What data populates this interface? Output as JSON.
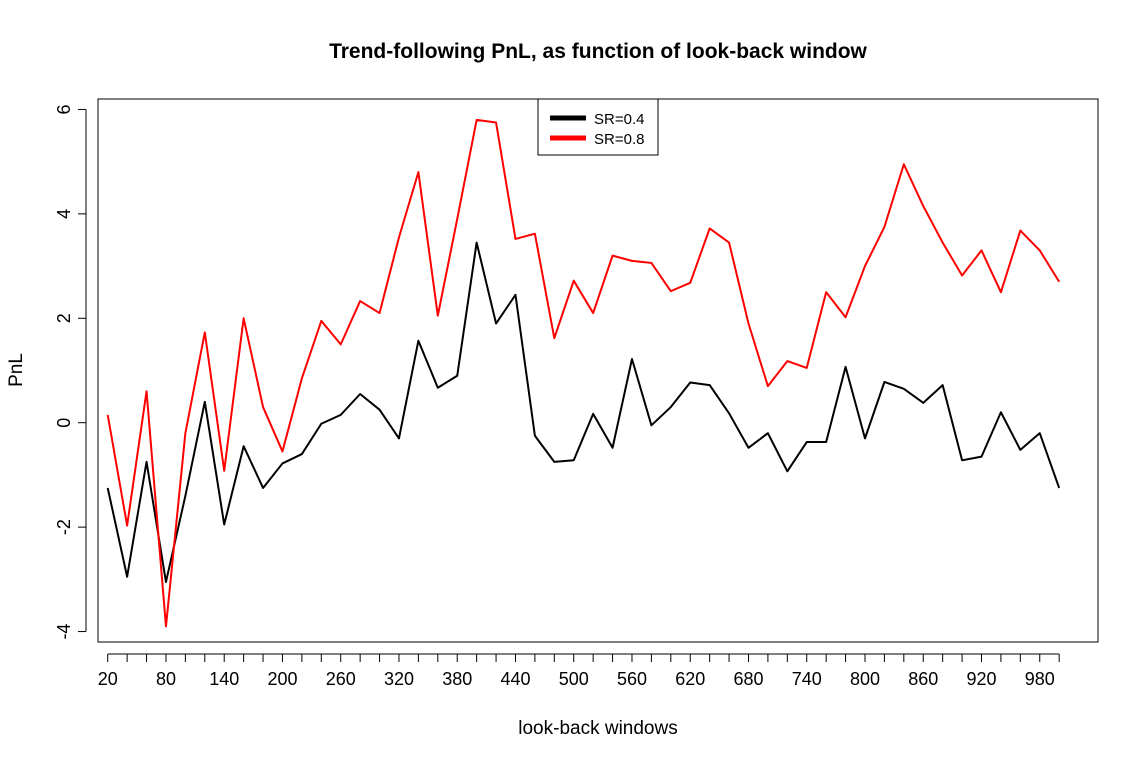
{
  "chart_data": {
    "type": "line",
    "title": "Trend-following PnL, as function of look-back window",
    "xlabel": "look-back windows",
    "ylabel": "PnL",
    "x": [
      20,
      40,
      60,
      80,
      100,
      120,
      140,
      160,
      180,
      200,
      220,
      240,
      260,
      280,
      300,
      320,
      340,
      360,
      380,
      400,
      420,
      440,
      460,
      480,
      500,
      520,
      540,
      560,
      580,
      600,
      620,
      640,
      660,
      680,
      700,
      720,
      740,
      760,
      780,
      800,
      820,
      840,
      860,
      880,
      900,
      920,
      940,
      960,
      980,
      1000
    ],
    "x_tick_labels": [
      "20",
      "80",
      "140",
      "200",
      "260",
      "320",
      "380",
      "440",
      "500",
      "560",
      "620",
      "680",
      "740",
      "800",
      "860",
      "920",
      "980"
    ],
    "y_ticks": [
      -4,
      -2,
      0,
      2,
      4,
      6
    ],
    "y_tick_labels": [
      "-4",
      "-2",
      "0",
      "2",
      "4",
      "6"
    ],
    "xlim": [
      10,
      1040
    ],
    "ylim": [
      -4.2,
      6.2
    ],
    "grid": false,
    "legend_position": "top-center",
    "series": [
      {
        "name": "SR=0.4",
        "color": "#000000",
        "values": [
          -1.25,
          -2.95,
          -0.75,
          -3.05,
          -1.4,
          0.4,
          -1.95,
          -0.45,
          -1.25,
          -0.78,
          -0.6,
          -0.02,
          0.15,
          0.55,
          0.25,
          -0.3,
          1.57,
          0.67,
          0.9,
          3.45,
          1.9,
          2.45,
          -0.25,
          -0.75,
          -0.72,
          0.17,
          -0.48,
          1.22,
          -0.05,
          0.3,
          0.77,
          0.72,
          0.18,
          -0.48,
          -0.2,
          -0.93,
          -0.37,
          -0.37,
          1.07,
          -0.3,
          0.78,
          0.65,
          0.38,
          0.72,
          -0.72,
          -0.65,
          0.2,
          -0.52,
          -0.2,
          -1.25
        ]
      },
      {
        "name": "SR=0.8",
        "color": "#ff0000",
        "values": [
          0.15,
          -1.97,
          0.6,
          -3.9,
          -0.2,
          1.73,
          -0.92,
          2.0,
          0.3,
          -0.55,
          0.85,
          1.95,
          1.5,
          2.33,
          2.1,
          3.55,
          4.8,
          2.05,
          3.9,
          5.8,
          5.75,
          3.52,
          3.62,
          1.62,
          2.72,
          2.1,
          3.2,
          3.1,
          3.06,
          2.52,
          2.68,
          3.72,
          3.45,
          1.9,
          0.7,
          1.18,
          1.05,
          2.5,
          2.02,
          3.0,
          3.75,
          4.95,
          4.15,
          3.45,
          2.82,
          3.3,
          2.5,
          3.68,
          3.3,
          2.7
        ]
      }
    ]
  }
}
